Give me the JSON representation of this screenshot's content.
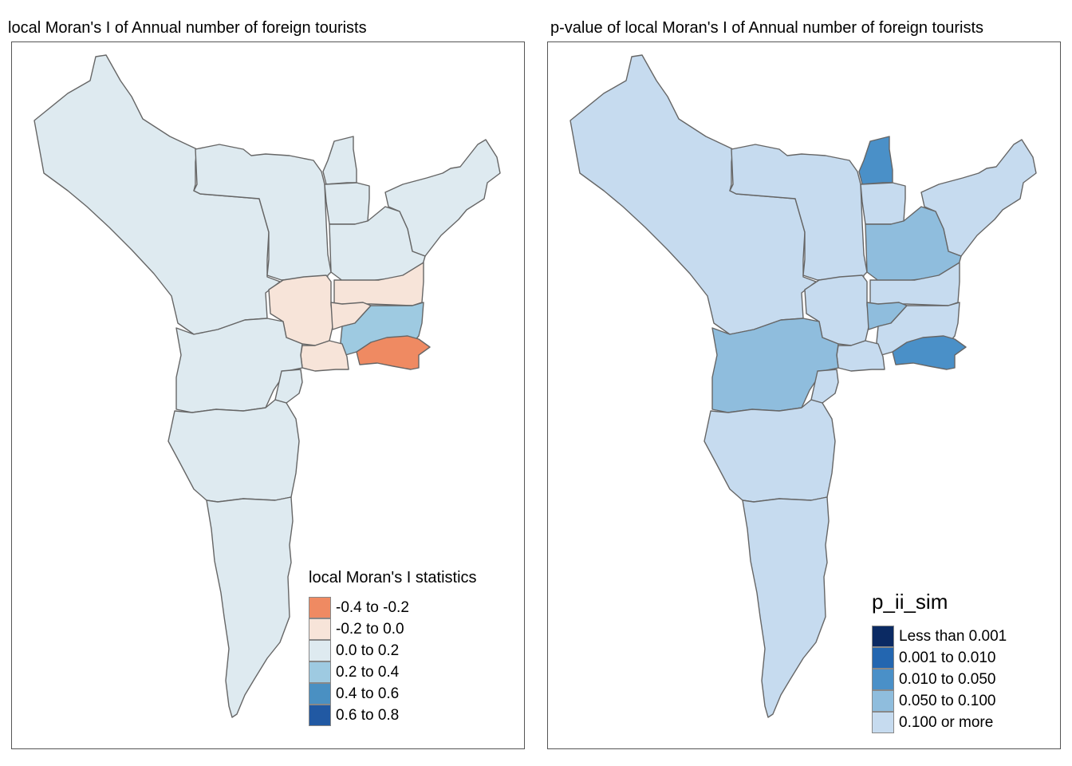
{
  "panels": [
    {
      "title": "local Moran's I of Annual number of foreign tourists",
      "legend": {
        "title": "local Moran's I statistics",
        "items": [
          {
            "label": "-0.4 to -0.2",
            "color": "#ef8a62"
          },
          {
            "label": "-0.2 to 0.0",
            "color": "#f7e4d9"
          },
          {
            "label": "0.0 to 0.2",
            "color": "#deeaf0"
          },
          {
            "label": "0.2 to 0.4",
            "color": "#9ecae1"
          },
          {
            "label": "0.4 to 0.6",
            "color": "#4a90c2"
          },
          {
            "label": "0.6 to 0.8",
            "color": "#2159a3"
          }
        ]
      }
    },
    {
      "title": "p-value of local Moran's I of Annual number of foreign tourists",
      "legend": {
        "title": "p_ii_sim",
        "items": [
          {
            "label": "Less than 0.001",
            "color": "#0b2a63"
          },
          {
            "label": "0.001 to 0.010",
            "color": "#2366b0"
          },
          {
            "label": "0.010 to 0.050",
            "color": "#4a90c8"
          },
          {
            "label": "0.050 to 0.100",
            "color": "#8fbddd"
          },
          {
            "label": "0.100 or more",
            "color": "#c6dbef"
          }
        ]
      }
    }
  ]
}
